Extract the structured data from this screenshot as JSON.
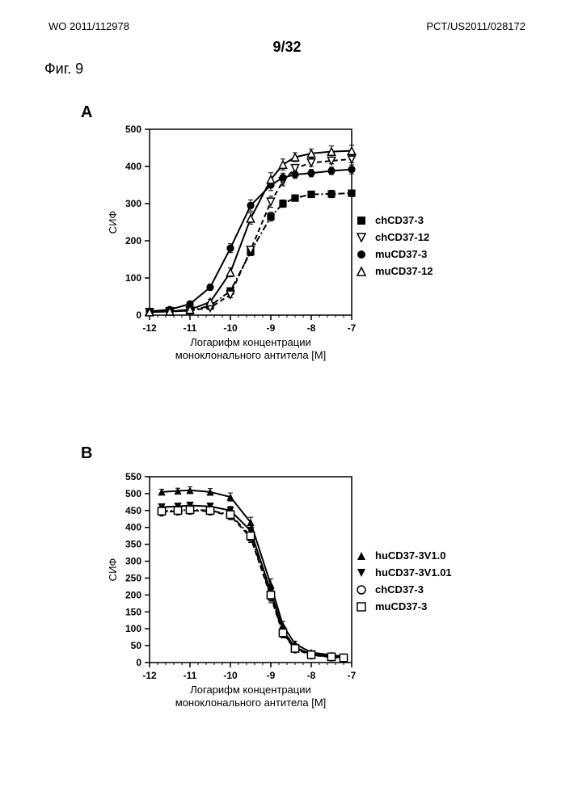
{
  "header": {
    "left": "WO 2011/112978",
    "right": "PCT/US2011/028172",
    "page": "9/32",
    "figure": "Фиг. 9"
  },
  "chartA": {
    "panel_label": "A",
    "type": "line",
    "xlabel_line1": "Логарифм концентрации",
    "xlabel_line2": "моноклонального антитела [М]",
    "ylabel": "СИФ",
    "xlim": [
      -12,
      -7
    ],
    "ylim": [
      0,
      500
    ],
    "xticks": [
      -12,
      -11,
      -10,
      -9,
      -8,
      -7
    ],
    "yticks": [
      0,
      100,
      200,
      300,
      400,
      500
    ],
    "series": [
      {
        "name": "chCD37-3",
        "marker": "square-filled",
        "dash": "dash-dot",
        "color": "#000000",
        "x": [
          -12,
          -11.5,
          -11,
          -10.5,
          -10,
          -9.5,
          -9,
          -8.7,
          -8.4,
          -8,
          -7.5,
          -7
        ],
        "y": [
          8,
          10,
          12,
          25,
          65,
          170,
          265,
          300,
          315,
          325,
          326,
          328
        ],
        "err": [
          0,
          0,
          0,
          5,
          8,
          10,
          12,
          10,
          8,
          8,
          10,
          8
        ]
      },
      {
        "name": "chCD37-12",
        "marker": "triangle-down-open",
        "dash": "dash",
        "color": "#000000",
        "x": [
          -12,
          -11.5,
          -11,
          -10.5,
          -10,
          -9.5,
          -9,
          -8.7,
          -8.4,
          -8,
          -7.5,
          -7
        ],
        "y": [
          8,
          10,
          12,
          20,
          55,
          175,
          305,
          360,
          395,
          410,
          415,
          420
        ],
        "err": [
          0,
          0,
          0,
          5,
          8,
          10,
          15,
          12,
          10,
          10,
          8,
          10
        ]
      },
      {
        "name": "muCD37-3",
        "marker": "circle-filled",
        "dash": "solid",
        "color": "#000000",
        "x": [
          -12,
          -11.5,
          -11,
          -10.5,
          -10,
          -9.5,
          -9,
          -8.7,
          -8.4,
          -8,
          -7.5,
          -7
        ],
        "y": [
          10,
          15,
          30,
          75,
          180,
          295,
          350,
          370,
          378,
          382,
          388,
          392
        ],
        "err": [
          0,
          0,
          5,
          8,
          12,
          15,
          15,
          12,
          10,
          10,
          10,
          12
        ]
      },
      {
        "name": "muCD37-12",
        "marker": "triangle-up-open",
        "dash": "solid",
        "color": "#000000",
        "x": [
          -12,
          -11.5,
          -11,
          -10.5,
          -10,
          -9.5,
          -9,
          -8.7,
          -8.4,
          -8,
          -7.5,
          -7
        ],
        "y": [
          8,
          10,
          15,
          35,
          115,
          260,
          365,
          405,
          425,
          435,
          440,
          442
        ],
        "err": [
          0,
          0,
          5,
          8,
          12,
          15,
          18,
          15,
          12,
          12,
          15,
          15
        ]
      }
    ],
    "legend": [
      {
        "marker": "square-hatch",
        "label": "chCD37-3"
      },
      {
        "marker": "triangle-down-open",
        "label": "chCD37-12"
      },
      {
        "marker": "circle-hatch",
        "label": "muCD37-3"
      },
      {
        "marker": "triangle-up-open",
        "label": "muCD37-12"
      }
    ],
    "tick_fontsize": 12,
    "label_fontsize": 13,
    "line_width": 2,
    "marker_size": 6
  },
  "chartB": {
    "panel_label": "B",
    "type": "line",
    "xlabel_line1": "Логарифм концентрации",
    "xlabel_line2": "моноклонального антитела [М]",
    "ylabel": "СИФ",
    "xlim": [
      -12,
      -7
    ],
    "ylim": [
      0,
      550
    ],
    "xticks": [
      -12,
      -11,
      -10,
      -9,
      -8,
      -7
    ],
    "yticks": [
      0,
      50,
      100,
      150,
      200,
      250,
      300,
      350,
      400,
      450,
      500,
      550
    ],
    "series": [
      {
        "name": "huCD37-3V1.0",
        "marker": "triangle-up-filled",
        "dash": "solid",
        "color": "#000000",
        "x": [
          -11.7,
          -11.3,
          -11,
          -10.5,
          -10,
          -9.5,
          -9,
          -8.7,
          -8.4,
          -8,
          -7.5,
          -7.2
        ],
        "y": [
          505,
          508,
          510,
          505,
          490,
          415,
          230,
          110,
          55,
          30,
          22,
          18
        ],
        "err": [
          8,
          8,
          10,
          10,
          12,
          15,
          18,
          12,
          8,
          5,
          5,
          5
        ]
      },
      {
        "name": "huCD37-3V1.01",
        "marker": "triangle-down-filled",
        "dash": "solid",
        "color": "#000000",
        "x": [
          -11.7,
          -11.3,
          -11,
          -10.5,
          -10,
          -9.5,
          -9,
          -8.7,
          -8.4,
          -8,
          -7.5,
          -7.2
        ],
        "y": [
          460,
          462,
          465,
          462,
          450,
          390,
          210,
          95,
          45,
          25,
          18,
          15
        ],
        "err": [
          8,
          8,
          8,
          10,
          12,
          15,
          18,
          12,
          8,
          5,
          5,
          5
        ]
      },
      {
        "name": "chCD37-3",
        "marker": "circle-open",
        "dash": "dash",
        "color": "#000000",
        "x": [
          -11.7,
          -11.3,
          -11,
          -10.5,
          -10,
          -9.5,
          -9,
          -8.7,
          -8.4,
          -8,
          -7.5,
          -7.2
        ],
        "y": [
          445,
          448,
          450,
          448,
          435,
          370,
          195,
          85,
          40,
          22,
          16,
          13
        ],
        "err": [
          8,
          8,
          8,
          10,
          12,
          15,
          18,
          12,
          8,
          5,
          5,
          5
        ]
      },
      {
        "name": "muCD37-3",
        "marker": "square-open",
        "dash": "dash-dot",
        "color": "#000000",
        "x": [
          -11.7,
          -11.3,
          -11,
          -10.5,
          -10,
          -9.5,
          -9,
          -8.7,
          -8.4,
          -8,
          -7.5,
          -7.2
        ],
        "y": [
          448,
          450,
          452,
          450,
          438,
          375,
          200,
          88,
          42,
          23,
          17,
          14
        ],
        "err": [
          8,
          8,
          8,
          10,
          12,
          15,
          18,
          12,
          8,
          5,
          5,
          5
        ]
      }
    ],
    "legend": [
      {
        "marker": "triangle-up-filled",
        "label": "huCD37-3V1.0"
      },
      {
        "marker": "triangle-down-filled",
        "label": "huCD37-3V1.01"
      },
      {
        "marker": "circle-open",
        "label": "chCD37-3"
      },
      {
        "marker": "square-open",
        "label": "muCD37-3"
      }
    ],
    "tick_fontsize": 12,
    "label_fontsize": 13,
    "line_width": 2,
    "marker_size": 6
  }
}
